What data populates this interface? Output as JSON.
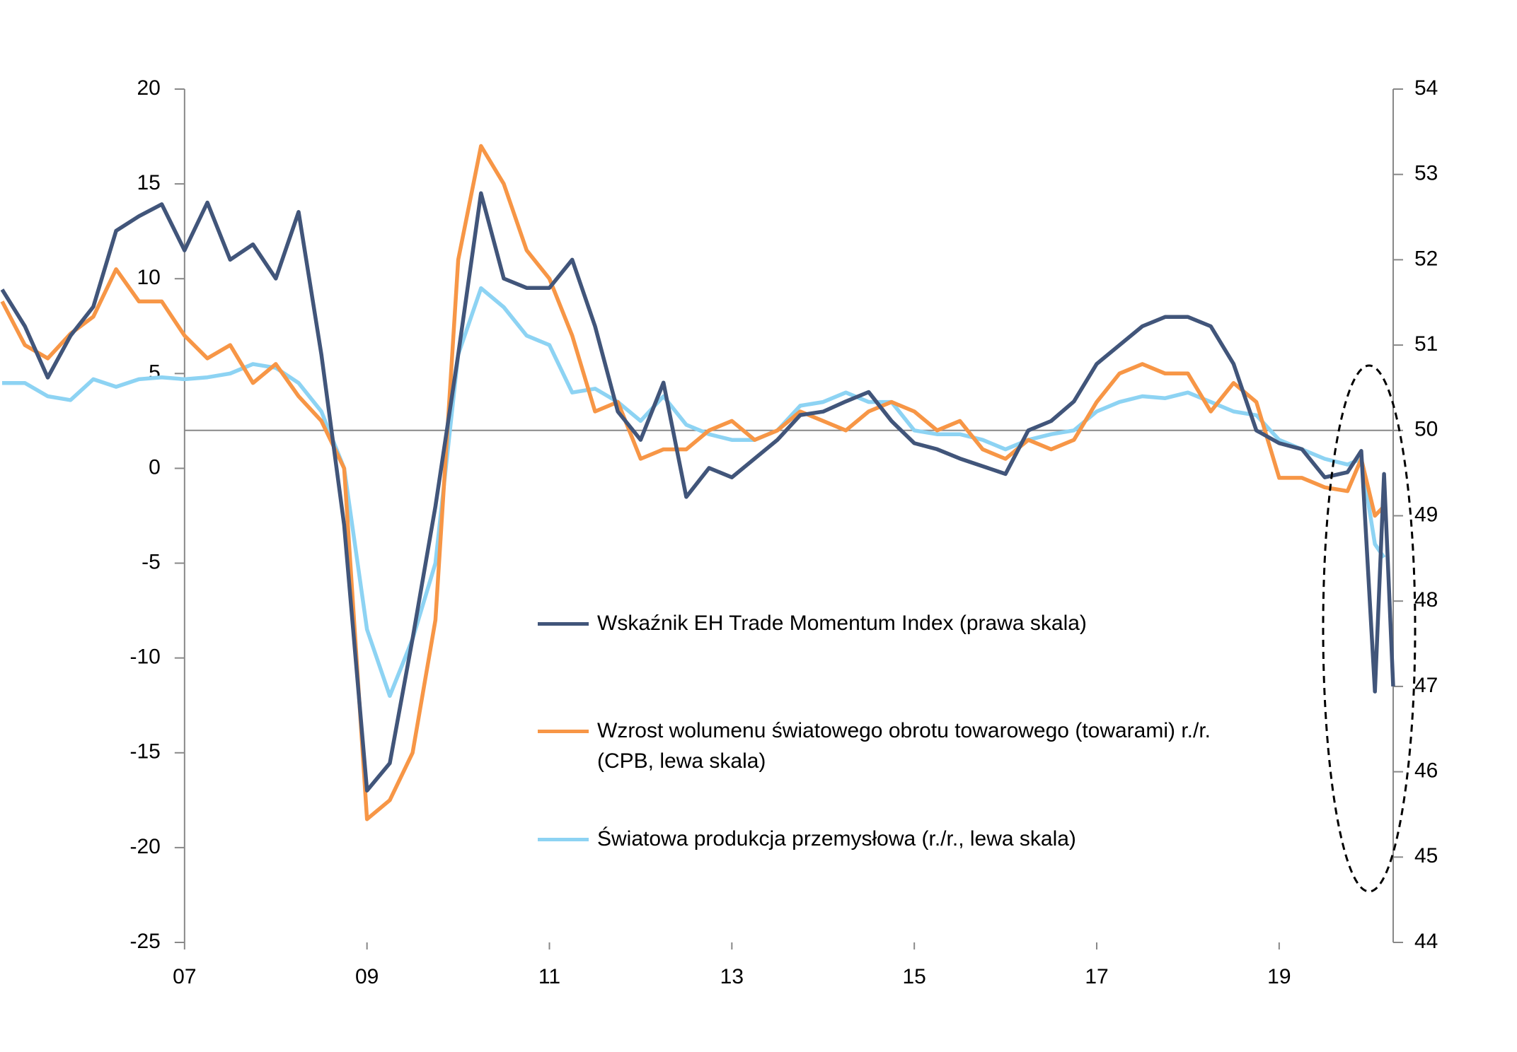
{
  "chart_data": {
    "type": "line",
    "x": [
      2005,
      2005.25,
      2005.5,
      2005.75,
      2006,
      2006.25,
      2006.5,
      2006.75,
      2007,
      2007.25,
      2007.5,
      2007.75,
      2008,
      2008.25,
      2008.5,
      2008.75,
      2009,
      2009.25,
      2009.5,
      2009.75,
      2010,
      2010.25,
      2010.5,
      2010.75,
      2011,
      2011.25,
      2011.5,
      2011.75,
      2012,
      2012.25,
      2012.5,
      2012.75,
      2013,
      2013.25,
      2013.5,
      2013.75,
      2014,
      2014.25,
      2014.5,
      2014.75,
      2015,
      2015.25,
      2015.5,
      2015.75,
      2016,
      2016.25,
      2016.5,
      2016.75,
      2017,
      2017.25,
      2017.5,
      2017.75,
      2018,
      2018.25,
      2018.5,
      2018.75,
      2019,
      2019.25,
      2019.5,
      2019.75,
      2019.9,
      2020.05,
      2020.15,
      2020.25
    ],
    "series": [
      {
        "name": "Wskaźnik EH Trade Momentum Index (prawa skala)",
        "color": "#41557a",
        "axis": "y2",
        "values": [
          51.65,
          51.22,
          50.62,
          51.11,
          51.45,
          52.34,
          52.51,
          52.65,
          52.11,
          52.67,
          52.0,
          52.18,
          51.78,
          52.56,
          50.89,
          48.89,
          45.78,
          46.1,
          47.56,
          49.11,
          50.89,
          52.78,
          51.78,
          51.67,
          51.67,
          52.0,
          51.22,
          50.22,
          49.89,
          50.56,
          49.22,
          49.56,
          49.45,
          49.67,
          49.89,
          50.18,
          50.22,
          50.34,
          50.45,
          50.11,
          49.85,
          49.78,
          49.67,
          49.58,
          49.49,
          50.0,
          50.11,
          50.34,
          50.78,
          51.0,
          51.22,
          51.33,
          51.33,
          51.22,
          50.78,
          50.0,
          49.85,
          49.78,
          49.45,
          49.51,
          49.76,
          46.94,
          49.49,
          47.0
        ]
      },
      {
        "name": "Wzrost wolumenu światowego obrotu towarowego (towarami) r./r. (CPB, lewa skala)",
        "color": "#f79646",
        "values": [
          8.8,
          6.5,
          5.8,
          7.1,
          8.0,
          10.5,
          8.8,
          8.8,
          7.0,
          5.8,
          6.5,
          4.5,
          5.5,
          3.8,
          2.5,
          0.0,
          -18.5,
          -17.5,
          -15.0,
          -8.0,
          11.0,
          17.0,
          15.0,
          11.5,
          10.0,
          7.0,
          3.0,
          3.5,
          0.5,
          1.0,
          1.0,
          2.0,
          2.5,
          1.5,
          2.0,
          3.0,
          2.5,
          2.0,
          3.0,
          3.5,
          3.0,
          2.0,
          2.5,
          1.0,
          0.5,
          1.5,
          1.0,
          1.5,
          3.5,
          5.0,
          5.5,
          5.0,
          5.0,
          3.0,
          4.5,
          3.5,
          -0.5,
          -0.5,
          -1.0,
          -1.2,
          0.5,
          -2.5,
          -2.0,
          null
        ]
      },
      {
        "name": "Światowa produkcja przemysłowa (r./r., lewa skala)",
        "color": "#8dd3f3",
        "values": [
          4.5,
          4.5,
          3.8,
          3.6,
          4.7,
          4.3,
          4.7,
          4.8,
          4.7,
          4.8,
          5.0,
          5.5,
          5.3,
          4.5,
          3.0,
          0.0,
          -8.5,
          -12.0,
          -9.0,
          -5.0,
          6.0,
          9.5,
          8.5,
          7.0,
          6.5,
          4.0,
          4.2,
          3.5,
          2.5,
          3.8,
          2.3,
          1.8,
          1.5,
          1.5,
          2.0,
          3.3,
          3.5,
          4.0,
          3.5,
          3.5,
          2.0,
          1.8,
          1.8,
          1.5,
          1.0,
          1.5,
          1.8,
          2.0,
          3.0,
          3.5,
          3.8,
          3.7,
          4.0,
          3.5,
          3.0,
          2.8,
          1.5,
          1.0,
          0.5,
          0.2,
          0.5,
          -4.0,
          -4.7,
          null
        ]
      }
    ],
    "xlim": [
      2005,
      2020.25
    ],
    "xticks": [
      {
        "value": 2007,
        "label": "07"
      },
      {
        "value": 2009,
        "label": "09"
      },
      {
        "value": 2011,
        "label": "11"
      },
      {
        "value": 2013,
        "label": "13"
      },
      {
        "value": 2015,
        "label": "15"
      },
      {
        "value": 2017,
        "label": "17"
      },
      {
        "value": 2019,
        "label": "19"
      }
    ],
    "ylim": [
      -25,
      20
    ],
    "yticks": [
      -25,
      -20,
      -15,
      -10,
      -5,
      0,
      5,
      10,
      15,
      20
    ],
    "y2lim": [
      44,
      54
    ],
    "y2ticks": [
      44,
      45,
      46,
      47,
      48,
      49,
      50,
      51,
      52,
      53,
      54
    ],
    "xaxis_crosses_y2": 50,
    "legend": "center"
  }
}
